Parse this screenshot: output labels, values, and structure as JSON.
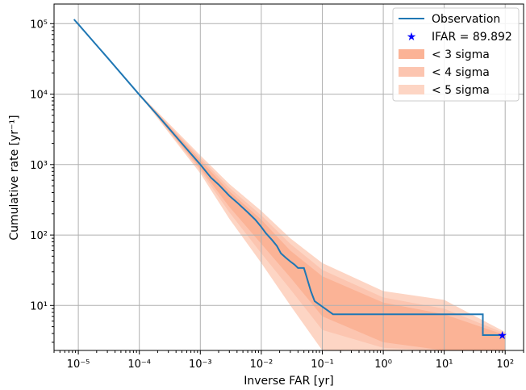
{
  "chart_data": {
    "type": "line",
    "xlabel": "Inverse FAR [yr]",
    "ylabel": "Cumulative rate [yr⁻¹]",
    "xscale": "log",
    "yscale": "log",
    "xlim": [
      4e-06,
      200
    ],
    "ylim": [
      2.3,
      190000
    ],
    "grid": true,
    "legend_position": "top-right",
    "x_ticks": [
      {
        "value": 1e-05,
        "label": "10⁻⁵"
      },
      {
        "value": 0.0001,
        "label": "10⁻⁴"
      },
      {
        "value": 0.001,
        "label": "10⁻³"
      },
      {
        "value": 0.01,
        "label": "10⁻²"
      },
      {
        "value": 0.1,
        "label": "10⁻¹"
      },
      {
        "value": 1,
        "label": "10⁰"
      },
      {
        "value": 10,
        "label": "10¹"
      },
      {
        "value": 100,
        "label": "10²"
      }
    ],
    "y_ticks": [
      {
        "value": 10,
        "label": "10¹"
      },
      {
        "value": 100,
        "label": "10²"
      },
      {
        "value": 1000,
        "label": "10³"
      },
      {
        "value": 10000,
        "label": "10⁴"
      },
      {
        "value": 100000,
        "label": "10⁵"
      }
    ],
    "series": [
      {
        "name": "Observation",
        "kind": "step-line",
        "color": "#1f77b4",
        "points": [
          [
            8.5e-06,
            115000
          ],
          [
            1e-05,
            98000
          ],
          [
            3e-05,
            33000
          ],
          [
            0.0001,
            9800
          ],
          [
            0.0002,
            5000
          ],
          [
            0.0005,
            2000
          ],
          [
            0.001,
            1000
          ],
          [
            0.0015,
            650
          ],
          [
            0.002,
            520
          ],
          [
            0.003,
            360
          ],
          [
            0.004,
            290
          ],
          [
            0.006,
            210
          ],
          [
            0.008,
            165
          ],
          [
            0.01,
            130
          ],
          [
            0.012,
            105
          ],
          [
            0.015,
            85
          ],
          [
            0.018,
            70
          ],
          [
            0.021,
            55
          ],
          [
            0.025,
            48
          ],
          [
            0.03,
            42
          ],
          [
            0.035,
            38
          ],
          [
            0.04,
            34
          ],
          [
            0.05,
            34
          ],
          [
            0.055,
            26
          ],
          [
            0.065,
            16
          ],
          [
            0.075,
            11.5
          ],
          [
            0.15,
            7.5
          ],
          [
            43,
            7.5
          ],
          [
            43,
            3.8
          ],
          [
            90,
            3.8
          ]
        ]
      },
      {
        "name": "IFAR = 89.892",
        "kind": "marker",
        "color": "#0000ff",
        "points": [
          [
            89.892,
            3.8
          ]
        ]
      }
    ],
    "bands": [
      {
        "name": "< 5 sigma",
        "color": "#fdd5c4",
        "points": [
          [
            8.5e-06,
            115000,
            115000
          ],
          [
            0.0001,
            9800,
            10200
          ],
          [
            0.001,
            750,
            1350
          ],
          [
            0.003,
            170,
            530
          ],
          [
            0.01,
            40,
            220
          ],
          [
            0.03,
            10,
            90
          ],
          [
            0.1,
            2.3,
            40
          ],
          [
            1,
            2.3,
            16
          ],
          [
            10,
            2.3,
            12
          ],
          [
            100,
            2.3,
            4.2
          ]
        ]
      },
      {
        "name": "< 4 sigma",
        "color": "#fcc5b0",
        "points": [
          [
            8.5e-06,
            115000,
            115000
          ],
          [
            0.0001,
            9900,
            10100
          ],
          [
            0.001,
            820,
            1250
          ],
          [
            0.003,
            210,
            470
          ],
          [
            0.01,
            55,
            190
          ],
          [
            0.03,
            17,
            75
          ],
          [
            0.1,
            4.5,
            32
          ],
          [
            1,
            2.5,
            13
          ],
          [
            10,
            2.3,
            9
          ],
          [
            100,
            2.3,
            4
          ]
        ]
      },
      {
        "name": "< 3 sigma",
        "color": "#fbb396",
        "points": [
          [
            8.5e-06,
            115000,
            115000
          ],
          [
            0.0001,
            9950,
            10050
          ],
          [
            0.001,
            880,
            1150
          ],
          [
            0.003,
            250,
            420
          ],
          [
            0.01,
            75,
            165
          ],
          [
            0.03,
            25,
            60
          ],
          [
            0.1,
            7,
            26
          ],
          [
            1,
            3,
            11
          ],
          [
            10,
            2.3,
            7.5
          ],
          [
            100,
            2.3,
            3.8
          ]
        ]
      }
    ]
  },
  "legend": {
    "items": [
      {
        "label": "Observation",
        "kind": "line",
        "color": "#1f77b4"
      },
      {
        "label": "IFAR = 89.892",
        "kind": "star",
        "color": "#0000ff"
      },
      {
        "label": "< 3 sigma",
        "kind": "patch",
        "color": "#fbb396"
      },
      {
        "label": "< 4 sigma",
        "kind": "patch",
        "color": "#fcc5b0"
      },
      {
        "label": "< 5 sigma",
        "kind": "patch",
        "color": "#fdd5c4"
      }
    ]
  }
}
